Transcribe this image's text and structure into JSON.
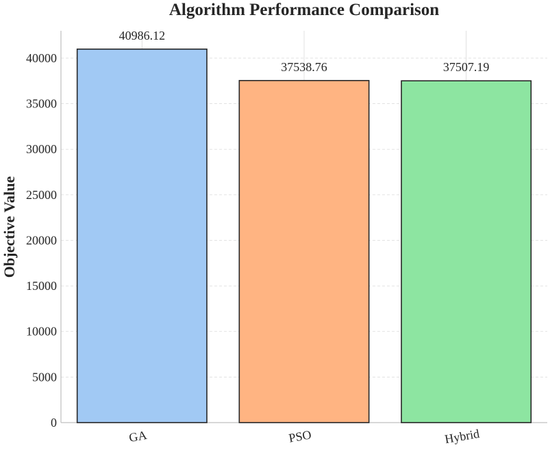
{
  "chart_data": {
    "type": "bar",
    "title": "Algorithm Performance Comparison",
    "xlabel": "",
    "ylabel": "Objective Value",
    "categories": [
      "GA",
      "PSO",
      "Hybrid"
    ],
    "values": [
      40986.12,
      37538.76,
      37507.19
    ],
    "value_labels": [
      "40986.12",
      "37538.76",
      "37507.19"
    ],
    "colors": [
      "#a1c9f4",
      "#ffb482",
      "#8de5a1"
    ],
    "edge_color": "#262626",
    "ylim": [
      0,
      43000
    ],
    "yticks": [
      0,
      5000,
      10000,
      15000,
      20000,
      25000,
      30000,
      35000,
      40000
    ],
    "ytick_labels": [
      "0",
      "5000",
      "10000",
      "15000",
      "20000",
      "25000",
      "30000",
      "35000",
      "40000"
    ],
    "xtick_rotation_deg": -10,
    "grid": true,
    "legend": "none"
  }
}
